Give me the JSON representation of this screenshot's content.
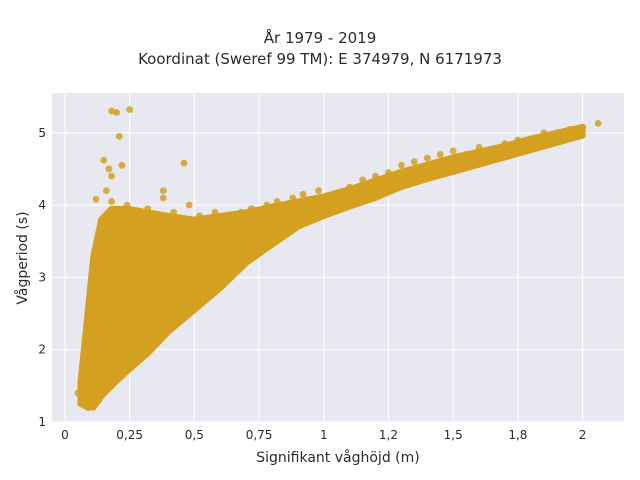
{
  "chart_data": {
    "type": "scatter",
    "title": "År 1979 - 2019",
    "subtitle": "Koordinat (Sweref 99 TM): E 374979, N 6171973",
    "xlabel": "Signifikant våghöjd (m)",
    "ylabel": "Vågperiod (s)",
    "xlim": [
      -0.05,
      2.16
    ],
    "ylim": [
      1.0,
      5.55
    ],
    "x_ticks": [
      0,
      0.25,
      0.5,
      0.75,
      1,
      1.25,
      1.5,
      1.75,
      2
    ],
    "x_tick_labels": [
      "0",
      "0,25",
      "0,5",
      "0,75",
      "1",
      "1,2",
      "1,5",
      "1,8",
      "2"
    ],
    "y_ticks": [
      1,
      2,
      3,
      4,
      5
    ],
    "y_tick_labels": [
      "1",
      "2",
      "3",
      "4",
      "5"
    ],
    "grid": true,
    "legend": "none",
    "colors": {
      "marker": "#D4A020",
      "plot_bg": "#E8E8F0",
      "grid": "#ffffff"
    },
    "series": [
      {
        "values": [
          [
            0.05,
            1.4
          ],
          [
            0.07,
            1.35
          ],
          [
            0.08,
            1.25
          ],
          [
            0.09,
            1.2
          ],
          [
            0.1,
            1.5
          ],
          [
            0.1,
            1.8
          ],
          [
            0.1,
            2.1
          ],
          [
            0.11,
            2.4
          ],
          [
            0.12,
            2.7
          ],
          [
            0.12,
            3.0
          ],
          [
            0.13,
            3.2
          ],
          [
            0.13,
            1.3
          ],
          [
            0.14,
            3.5
          ],
          [
            0.15,
            3.7
          ],
          [
            0.15,
            1.6
          ],
          [
            0.16,
            2.0
          ],
          [
            0.17,
            3.85
          ],
          [
            0.18,
            4.05
          ],
          [
            0.18,
            1.5
          ],
          [
            0.19,
            2.2
          ],
          [
            0.2,
            3.9
          ],
          [
            0.2,
            1.7
          ],
          [
            0.22,
            3.8
          ],
          [
            0.22,
            2.0
          ],
          [
            0.24,
            4.0
          ],
          [
            0.25,
            2.1
          ],
          [
            0.25,
            3.6
          ],
          [
            0.27,
            3.9
          ],
          [
            0.28,
            2.2
          ],
          [
            0.3,
            3.7
          ],
          [
            0.3,
            2.3
          ],
          [
            0.32,
            3.95
          ],
          [
            0.33,
            2.5
          ],
          [
            0.35,
            3.8
          ],
          [
            0.36,
            2.6
          ],
          [
            0.38,
            4.1
          ],
          [
            0.4,
            2.7
          ],
          [
            0.4,
            3.6
          ],
          [
            0.42,
            3.9
          ],
          [
            0.45,
            2.9
          ],
          [
            0.45,
            3.7
          ],
          [
            0.48,
            4.0
          ],
          [
            0.5,
            3.0
          ],
          [
            0.5,
            3.5
          ],
          [
            0.52,
            3.85
          ],
          [
            0.55,
            3.2
          ],
          [
            0.56,
            3.7
          ],
          [
            0.58,
            3.9
          ],
          [
            0.6,
            3.3
          ],
          [
            0.62,
            3.8
          ],
          [
            0.65,
            3.5
          ],
          [
            0.68,
            3.9
          ],
          [
            0.7,
            3.6
          ],
          [
            0.72,
            3.95
          ],
          [
            0.75,
            3.7
          ],
          [
            0.78,
            4.0
          ],
          [
            0.8,
            3.8
          ],
          [
            0.82,
            4.05
          ],
          [
            0.85,
            3.85
          ],
          [
            0.88,
            4.1
          ],
          [
            0.9,
            3.95
          ],
          [
            0.92,
            4.15
          ],
          [
            0.95,
            4.0
          ],
          [
            0.98,
            4.2
          ],
          [
            1.0,
            4.05
          ],
          [
            1.05,
            4.15
          ],
          [
            1.1,
            4.25
          ],
          [
            1.15,
            4.35
          ],
          [
            1.2,
            4.4
          ],
          [
            1.25,
            4.45
          ],
          [
            1.3,
            4.55
          ],
          [
            1.35,
            4.6
          ],
          [
            1.4,
            4.65
          ],
          [
            1.45,
            4.7
          ],
          [
            1.5,
            4.75
          ],
          [
            1.55,
            4.7
          ],
          [
            1.6,
            4.8
          ],
          [
            1.65,
            4.75
          ],
          [
            1.7,
            4.85
          ],
          [
            1.75,
            4.9
          ],
          [
            1.8,
            4.9
          ],
          [
            1.85,
            5.0
          ],
          [
            1.9,
            5.0
          ],
          [
            1.95,
            5.05
          ],
          [
            2.0,
            5.08
          ],
          [
            2.06,
            5.13
          ],
          [
            0.18,
            5.3
          ],
          [
            0.2,
            5.28
          ],
          [
            0.25,
            5.32
          ],
          [
            0.21,
            4.95
          ],
          [
            0.22,
            4.55
          ],
          [
            0.16,
            4.2
          ],
          [
            0.18,
            4.4
          ],
          [
            0.46,
            4.58
          ],
          [
            0.15,
            4.62
          ],
          [
            0.17,
            4.5
          ],
          [
            0.12,
            4.08
          ],
          [
            0.38,
            4.2
          ]
        ]
      }
    ],
    "point_cloud_note_none": ""
  }
}
